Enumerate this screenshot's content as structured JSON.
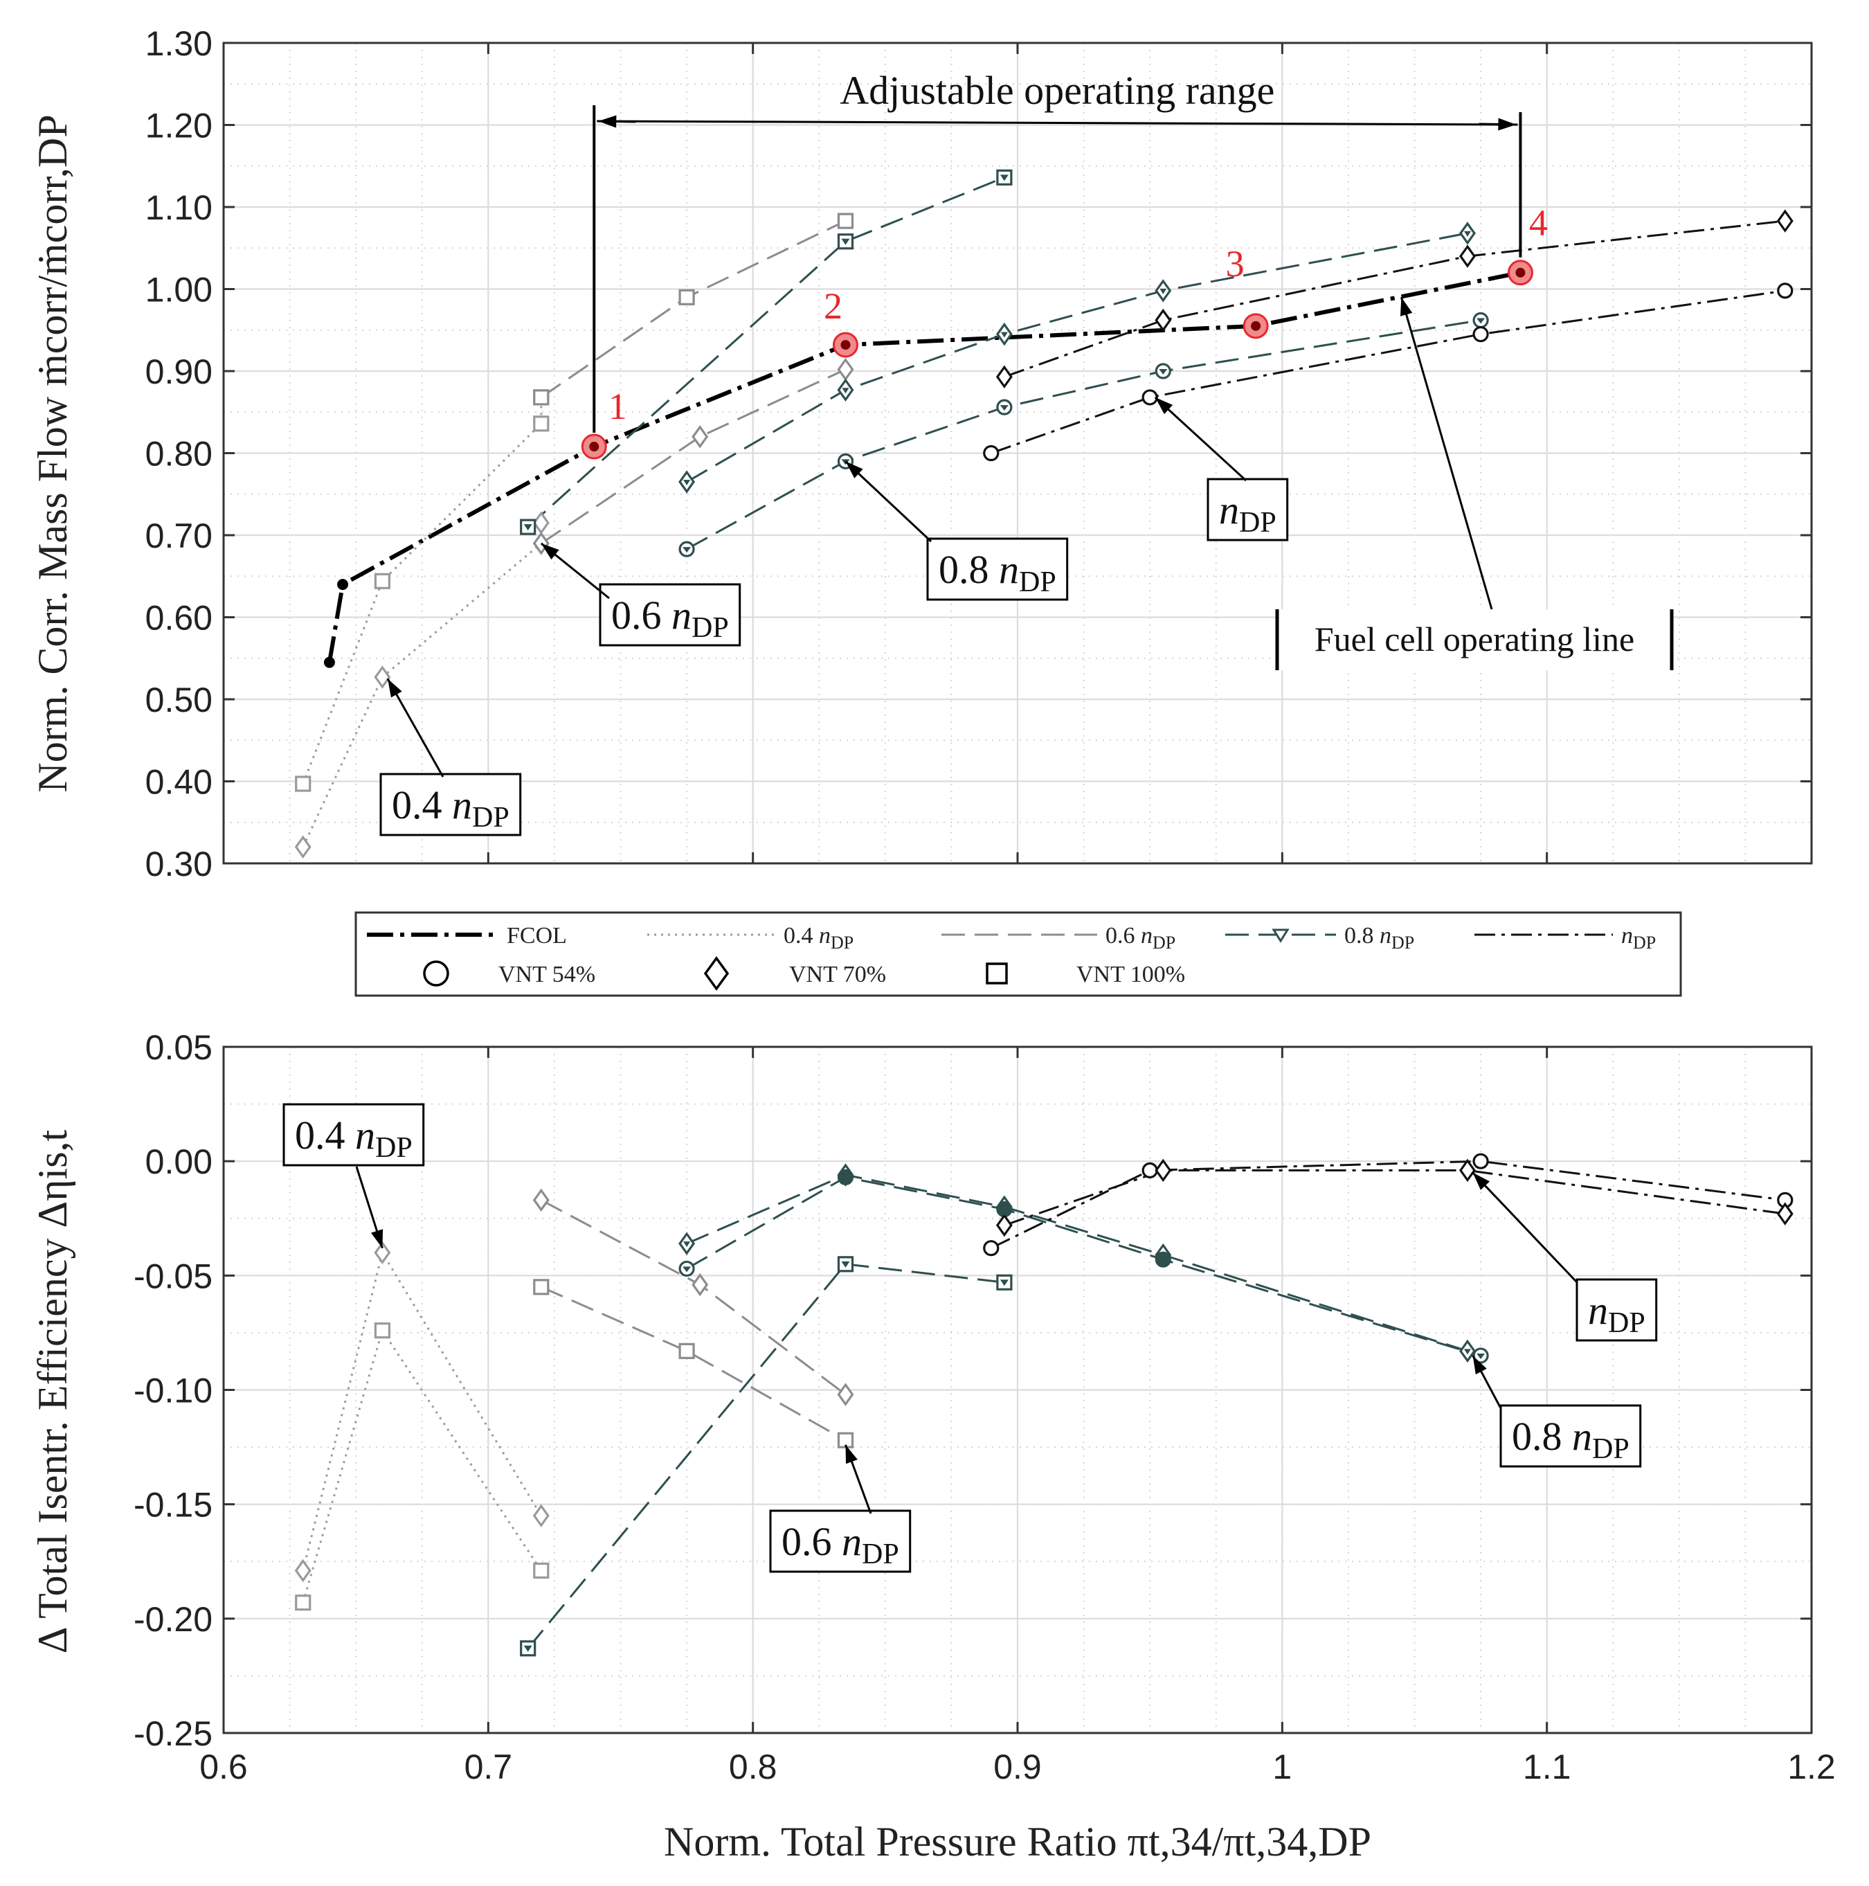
{
  "chart_data": [
    {
      "type": "line",
      "panel": "top",
      "ylabel": "Norm. Corr. Mass Flow ṁcorr/ṁcorr,DP",
      "xlim": [
        0.6,
        1.2
      ],
      "ylim": [
        0.3,
        1.3
      ],
      "yticks": [
        "1.30",
        "1.20",
        "1.10",
        "1.00",
        "0.90",
        "0.80",
        "0.70",
        "0.60",
        "0.50",
        "0.40",
        "0.30"
      ],
      "series": [
        {
          "name": "FCOL",
          "style": "fcol",
          "points": [
            [
              0.64,
              0.545
            ],
            [
              0.645,
              0.64
            ],
            [
              0.74,
              0.808
            ],
            [
              0.835,
              0.932
            ],
            [
              0.99,
              0.955
            ],
            [
              1.09,
              1.02
            ]
          ]
        },
        {
          "name": "0.4 nDP VNT 100%",
          "style": "n04",
          "marker": "square",
          "points": [
            [
              0.63,
              0.397
            ],
            [
              0.66,
              0.644
            ],
            [
              0.72,
              0.836
            ],
            [
              0.72,
              0.868
            ]
          ]
        },
        {
          "name": "0.4 nDP VNT 70%",
          "style": "n04",
          "marker": "diamond",
          "points": [
            [
              0.63,
              0.32
            ],
            [
              0.66,
              0.527
            ],
            [
              0.72,
              0.69
            ],
            [
              0.72,
              0.715
            ]
          ]
        },
        {
          "name": "0.6 nDP VNT 100%",
          "style": "n06",
          "marker": "square",
          "points": [
            [
              0.72,
              0.868
            ],
            [
              0.775,
              0.99
            ],
            [
              0.835,
              1.083
            ]
          ]
        },
        {
          "name": "0.6 nDP VNT 70%",
          "style": "n06",
          "marker": "diamond",
          "points": [
            [
              0.72,
              0.69
            ],
            [
              0.78,
              0.82
            ],
            [
              0.835,
              0.902
            ]
          ]
        },
        {
          "name": "0.8 nDP VNT 100%",
          "style": "n08",
          "marker": "squaret",
          "points": [
            [
              0.715,
              0.71
            ],
            [
              0.835,
              1.058
            ],
            [
              0.895,
              1.136
            ]
          ]
        },
        {
          "name": "0.8 nDP VNT 70%",
          "style": "n08",
          "marker": "diamondt",
          "points": [
            [
              0.775,
              0.765
            ],
            [
              0.835,
              0.877
            ],
            [
              0.895,
              0.945
            ],
            [
              0.955,
              0.998
            ],
            [
              1.07,
              1.068
            ]
          ]
        },
        {
          "name": "0.8 nDP VNT 54%",
          "style": "n08",
          "marker": "circlet",
          "points": [
            [
              0.775,
              0.683
            ],
            [
              0.835,
              0.79
            ],
            [
              0.895,
              0.856
            ],
            [
              0.955,
              0.9
            ],
            [
              1.075,
              0.962
            ]
          ]
        },
        {
          "name": "nDP VNT 70%",
          "style": "ndp",
          "marker": "diamond",
          "points": [
            [
              0.895,
              0.893
            ],
            [
              0.955,
              0.962
            ],
            [
              1.07,
              1.04
            ],
            [
              1.19,
              1.083
            ]
          ]
        },
        {
          "name": "nDP VNT 54%",
          "style": "ndp",
          "marker": "circle",
          "points": [
            [
              0.89,
              0.8
            ],
            [
              0.95,
              0.868
            ],
            [
              1.075,
              0.945
            ],
            [
              1.19,
              0.998
            ]
          ]
        }
      ],
      "highlight_points": [
        {
          "label": "1",
          "x": 0.74,
          "y": 0.808
        },
        {
          "label": "2",
          "x": 0.835,
          "y": 0.932
        },
        {
          "label": "3",
          "x": 0.99,
          "y": 0.955
        },
        {
          "label": "4",
          "x": 1.09,
          "y": 1.02
        }
      ],
      "range_annotation": {
        "text": "Adjustable operating range",
        "x_from": 0.74,
        "x_to": 1.09
      },
      "annotations": [
        {
          "id": "n04",
          "main": "0.4",
          "var": "n",
          "sub": "DP",
          "tip": [
            0.662,
            0.525
          ]
        },
        {
          "id": "n06",
          "main": "0.6",
          "var": "n",
          "sub": "DP",
          "tip": [
            0.72,
            0.69
          ]
        },
        {
          "id": "n08",
          "main": "0.8",
          "var": "n",
          "sub": "DP",
          "tip": [
            0.835,
            0.79
          ]
        },
        {
          "id": "ndp",
          "main": "",
          "var": "n",
          "sub": "DP",
          "tip": [
            0.952,
            0.868
          ]
        },
        {
          "id": "fcol",
          "main": "Fuel cell operating line",
          "var": "",
          "sub": "",
          "tip": [
            1.045,
            0.99
          ]
        }
      ]
    },
    {
      "type": "line",
      "panel": "bottom",
      "xlabel": "Norm. Total Pressure Ratio πt,34/πt,34,DP",
      "ylabel": "Δ Total Isentr. Efficiency Δηis,t",
      "xlim": [
        0.6,
        1.2
      ],
      "ylim": [
        -0.25,
        0.05
      ],
      "xticks": [
        "0.6",
        "0.7",
        "0.8",
        "0.9",
        "1",
        "1.1",
        "1.2"
      ],
      "yticks": [
        "0.05",
        "0.00",
        "-0.05",
        "-0.10",
        "-0.15",
        "-0.20",
        "-0.25"
      ],
      "series": [
        {
          "name": "0.4 nDP VNT 70%",
          "style": "n04",
          "marker": "diamond",
          "points": [
            [
              0.63,
              -0.179
            ],
            [
              0.66,
              -0.04
            ],
            [
              0.72,
              -0.155
            ]
          ]
        },
        {
          "name": "0.4 nDP VNT 100%",
          "style": "n04",
          "marker": "square",
          "points": [
            [
              0.63,
              -0.193
            ],
            [
              0.66,
              -0.074
            ],
            [
              0.72,
              -0.179
            ]
          ]
        },
        {
          "name": "0.6 nDP VNT 70%",
          "style": "n06",
          "marker": "diamond",
          "points": [
            [
              0.72,
              -0.017
            ],
            [
              0.78,
              -0.054
            ],
            [
              0.835,
              -0.102
            ]
          ]
        },
        {
          "name": "0.6 nDP VNT 100%",
          "style": "n06",
          "marker": "square",
          "points": [
            [
              0.72,
              -0.055
            ],
            [
              0.775,
              -0.083
            ],
            [
              0.835,
              -0.122
            ]
          ]
        },
        {
          "name": "0.8 nDP VNT 100%",
          "style": "n08",
          "marker": "squaret",
          "points": [
            [
              0.715,
              -0.213
            ],
            [
              0.835,
              -0.045
            ],
            [
              0.895,
              -0.053
            ]
          ]
        },
        {
          "name": "0.8 nDP VNT 70%",
          "style": "n08",
          "marker": "diamondt",
          "points": [
            [
              0.775,
              -0.036
            ],
            [
              0.835,
              -0.006
            ],
            [
              0.895,
              -0.02
            ],
            [
              0.955,
              -0.041
            ],
            [
              1.07,
              -0.083
            ]
          ]
        },
        {
          "name": "0.8 nDP VNT 54%",
          "style": "n08",
          "marker": "circlet",
          "points": [
            [
              0.775,
              -0.047
            ],
            [
              0.835,
              -0.007
            ],
            [
              0.895,
              -0.021
            ],
            [
              0.955,
              -0.043
            ],
            [
              1.075,
              -0.085
            ]
          ]
        },
        {
          "name": "nDP VNT 54%",
          "style": "ndp",
          "marker": "circle",
          "points": [
            [
              0.89,
              -0.038
            ],
            [
              0.95,
              -0.004
            ],
            [
              1.075,
              0.0
            ],
            [
              1.19,
              -0.017
            ]
          ]
        },
        {
          "name": "nDP VNT 70%",
          "style": "ndp",
          "marker": "diamond",
          "points": [
            [
              0.895,
              -0.028
            ],
            [
              0.955,
              -0.004
            ],
            [
              1.07,
              -0.004
            ],
            [
              1.19,
              -0.023
            ]
          ]
        }
      ],
      "annotations": [
        {
          "id": "b04",
          "main": "0.4",
          "var": "n",
          "sub": "DP",
          "tip": [
            0.66,
            -0.038
          ]
        },
        {
          "id": "b06",
          "main": "0.6",
          "var": "n",
          "sub": "DP",
          "tip": [
            0.835,
            -0.124
          ]
        },
        {
          "id": "bndp",
          "main": "",
          "var": "n",
          "sub": "DP",
          "tip": [
            1.072,
            -0.005
          ]
        },
        {
          "id": "b08",
          "main": "0.8",
          "var": "n",
          "sub": "DP",
          "tip": [
            1.072,
            -0.085
          ]
        }
      ]
    }
  ],
  "legend": {
    "row1": [
      {
        "style": "fcol",
        "main": "FCOL",
        "var": "",
        "sub": ""
      },
      {
        "style": "n04",
        "main": "0.4",
        "var": "n",
        "sub": "DP"
      },
      {
        "style": "n06",
        "main": "0.6",
        "var": "n",
        "sub": "DP"
      },
      {
        "style": "n08",
        "main": "0.8",
        "var": "n",
        "sub": "DP"
      },
      {
        "style": "ndp",
        "main": "",
        "var": "n",
        "sub": "DP"
      }
    ],
    "row2": [
      {
        "marker": "circle",
        "label": "VNT 54%"
      },
      {
        "marker": "diamond",
        "label": "VNT 70%"
      },
      {
        "marker": "square",
        "label": "VNT 100%"
      }
    ]
  },
  "colors": {
    "fcol": "#000000",
    "n04": "#9a9a9a",
    "n06": "#8c8c8c",
    "n08": "#2f4f4f",
    "ndp": "#111111",
    "highlight": "#e8272d"
  }
}
